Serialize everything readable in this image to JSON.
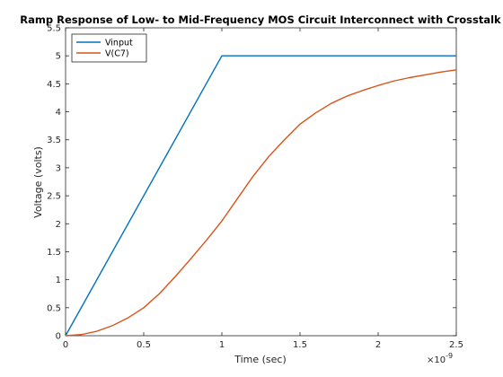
{
  "chart_data": {
    "type": "line",
    "title": "Ramp Response of Low- to Mid-Frequency MOS Circuit Interconnect with Crosstalk",
    "xlabel": "Time (sec)",
    "ylabel": "Voltage (volts)",
    "x_exponent_label": "×10",
    "x_exponent_power": "-9",
    "xlim": [
      0,
      2.5
    ],
    "ylim": [
      0,
      5.5
    ],
    "xticks": [
      "0",
      "0.5",
      "1",
      "1.5",
      "2",
      "2.5"
    ],
    "yticks": [
      "0",
      "0.5",
      "1",
      "1.5",
      "2",
      "2.5",
      "3",
      "3.5",
      "4",
      "4.5",
      "5",
      "5.5"
    ],
    "grid": false,
    "legend_position": "top-left",
    "series": [
      {
        "name": "Vinput",
        "color": "#0072BD",
        "x": [
          0,
          1.0,
          2.5
        ],
        "y": [
          0,
          5.0,
          5.0
        ]
      },
      {
        "name": "V(C7)",
        "color": "#D95319",
        "x": [
          0,
          0.1,
          0.2,
          0.3,
          0.4,
          0.5,
          0.6,
          0.7,
          0.8,
          0.9,
          1.0,
          1.1,
          1.2,
          1.3,
          1.4,
          1.5,
          1.6,
          1.7,
          1.8,
          1.9,
          2.0,
          2.1,
          2.2,
          2.3,
          2.4,
          2.5
        ],
        "y": [
          0,
          0.02,
          0.08,
          0.18,
          0.32,
          0.5,
          0.75,
          1.05,
          1.37,
          1.7,
          2.05,
          2.45,
          2.85,
          3.2,
          3.5,
          3.78,
          3.98,
          4.15,
          4.28,
          4.38,
          4.47,
          4.55,
          4.61,
          4.66,
          4.71,
          4.75
        ]
      }
    ]
  }
}
